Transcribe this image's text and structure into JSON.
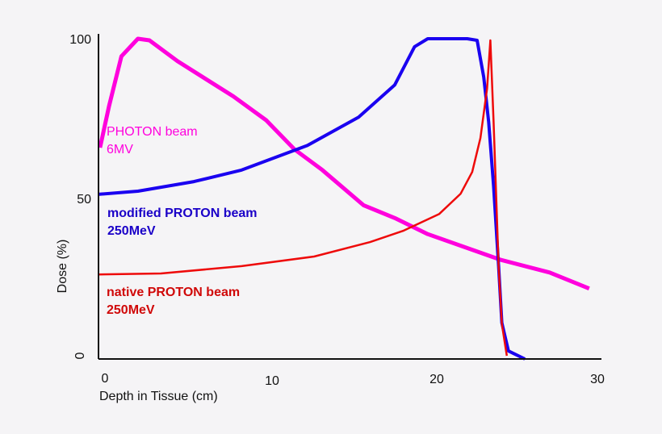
{
  "chart_data": {
    "type": "line",
    "title": "",
    "xlabel": "Depth in Tissue (cm)",
    "ylabel": "Dose (%)",
    "xlim": [
      0,
      30
    ],
    "ylim": [
      0,
      100
    ],
    "xticks": [
      "0",
      "10",
      "20",
      "30"
    ],
    "yticks": [
      "0",
      "50",
      "100"
    ],
    "grid": false,
    "series": [
      {
        "name": "PHOTON beam",
        "sublabel": "6MV",
        "color": "#ff00dd",
        "x": [
          -0.3,
          0.25,
          1,
          2,
          2.7,
          4.4,
          7.8,
          9.8,
          11.5,
          13.2,
          15.7,
          17.6,
          19.6,
          24,
          27,
          29.4
        ],
        "y": [
          66,
          79,
          94.5,
          100,
          99.5,
          93,
          82,
          74.5,
          65.5,
          59,
          48,
          44,
          39,
          31,
          27,
          22
        ]
      },
      {
        "name": "modified PROTON beam",
        "sublabel": "250MeV",
        "color": "#1a00f0",
        "x": [
          -0.4,
          2,
          5.4,
          8.3,
          12.3,
          15.4,
          17.6,
          18.8,
          19.6,
          22,
          22.6,
          23,
          23.3,
          23.6,
          23.9,
          24.1,
          24.5,
          25.5
        ],
        "y": [
          51.4,
          52.4,
          55.4,
          59,
          66.7,
          75.5,
          85.6,
          97.5,
          100,
          100,
          99.5,
          88,
          74,
          54,
          29,
          11.3,
          2.5,
          0
        ]
      },
      {
        "name": "native PROTON beam",
        "sublabel": "250MeV",
        "color": "#ee0a0a",
        "x": [
          -0.4,
          3.4,
          8.3,
          12.7,
          16.1,
          18.1,
          20.3,
          21.6,
          22.3,
          22.8,
          23.2,
          23.4,
          23.6,
          23.9,
          24.1,
          24.4
        ],
        "y": [
          26.4,
          26.7,
          29,
          32,
          36.5,
          40,
          45.3,
          51.6,
          58.4,
          69,
          84.4,
          99.5,
          74,
          29,
          11,
          1
        ]
      }
    ]
  }
}
